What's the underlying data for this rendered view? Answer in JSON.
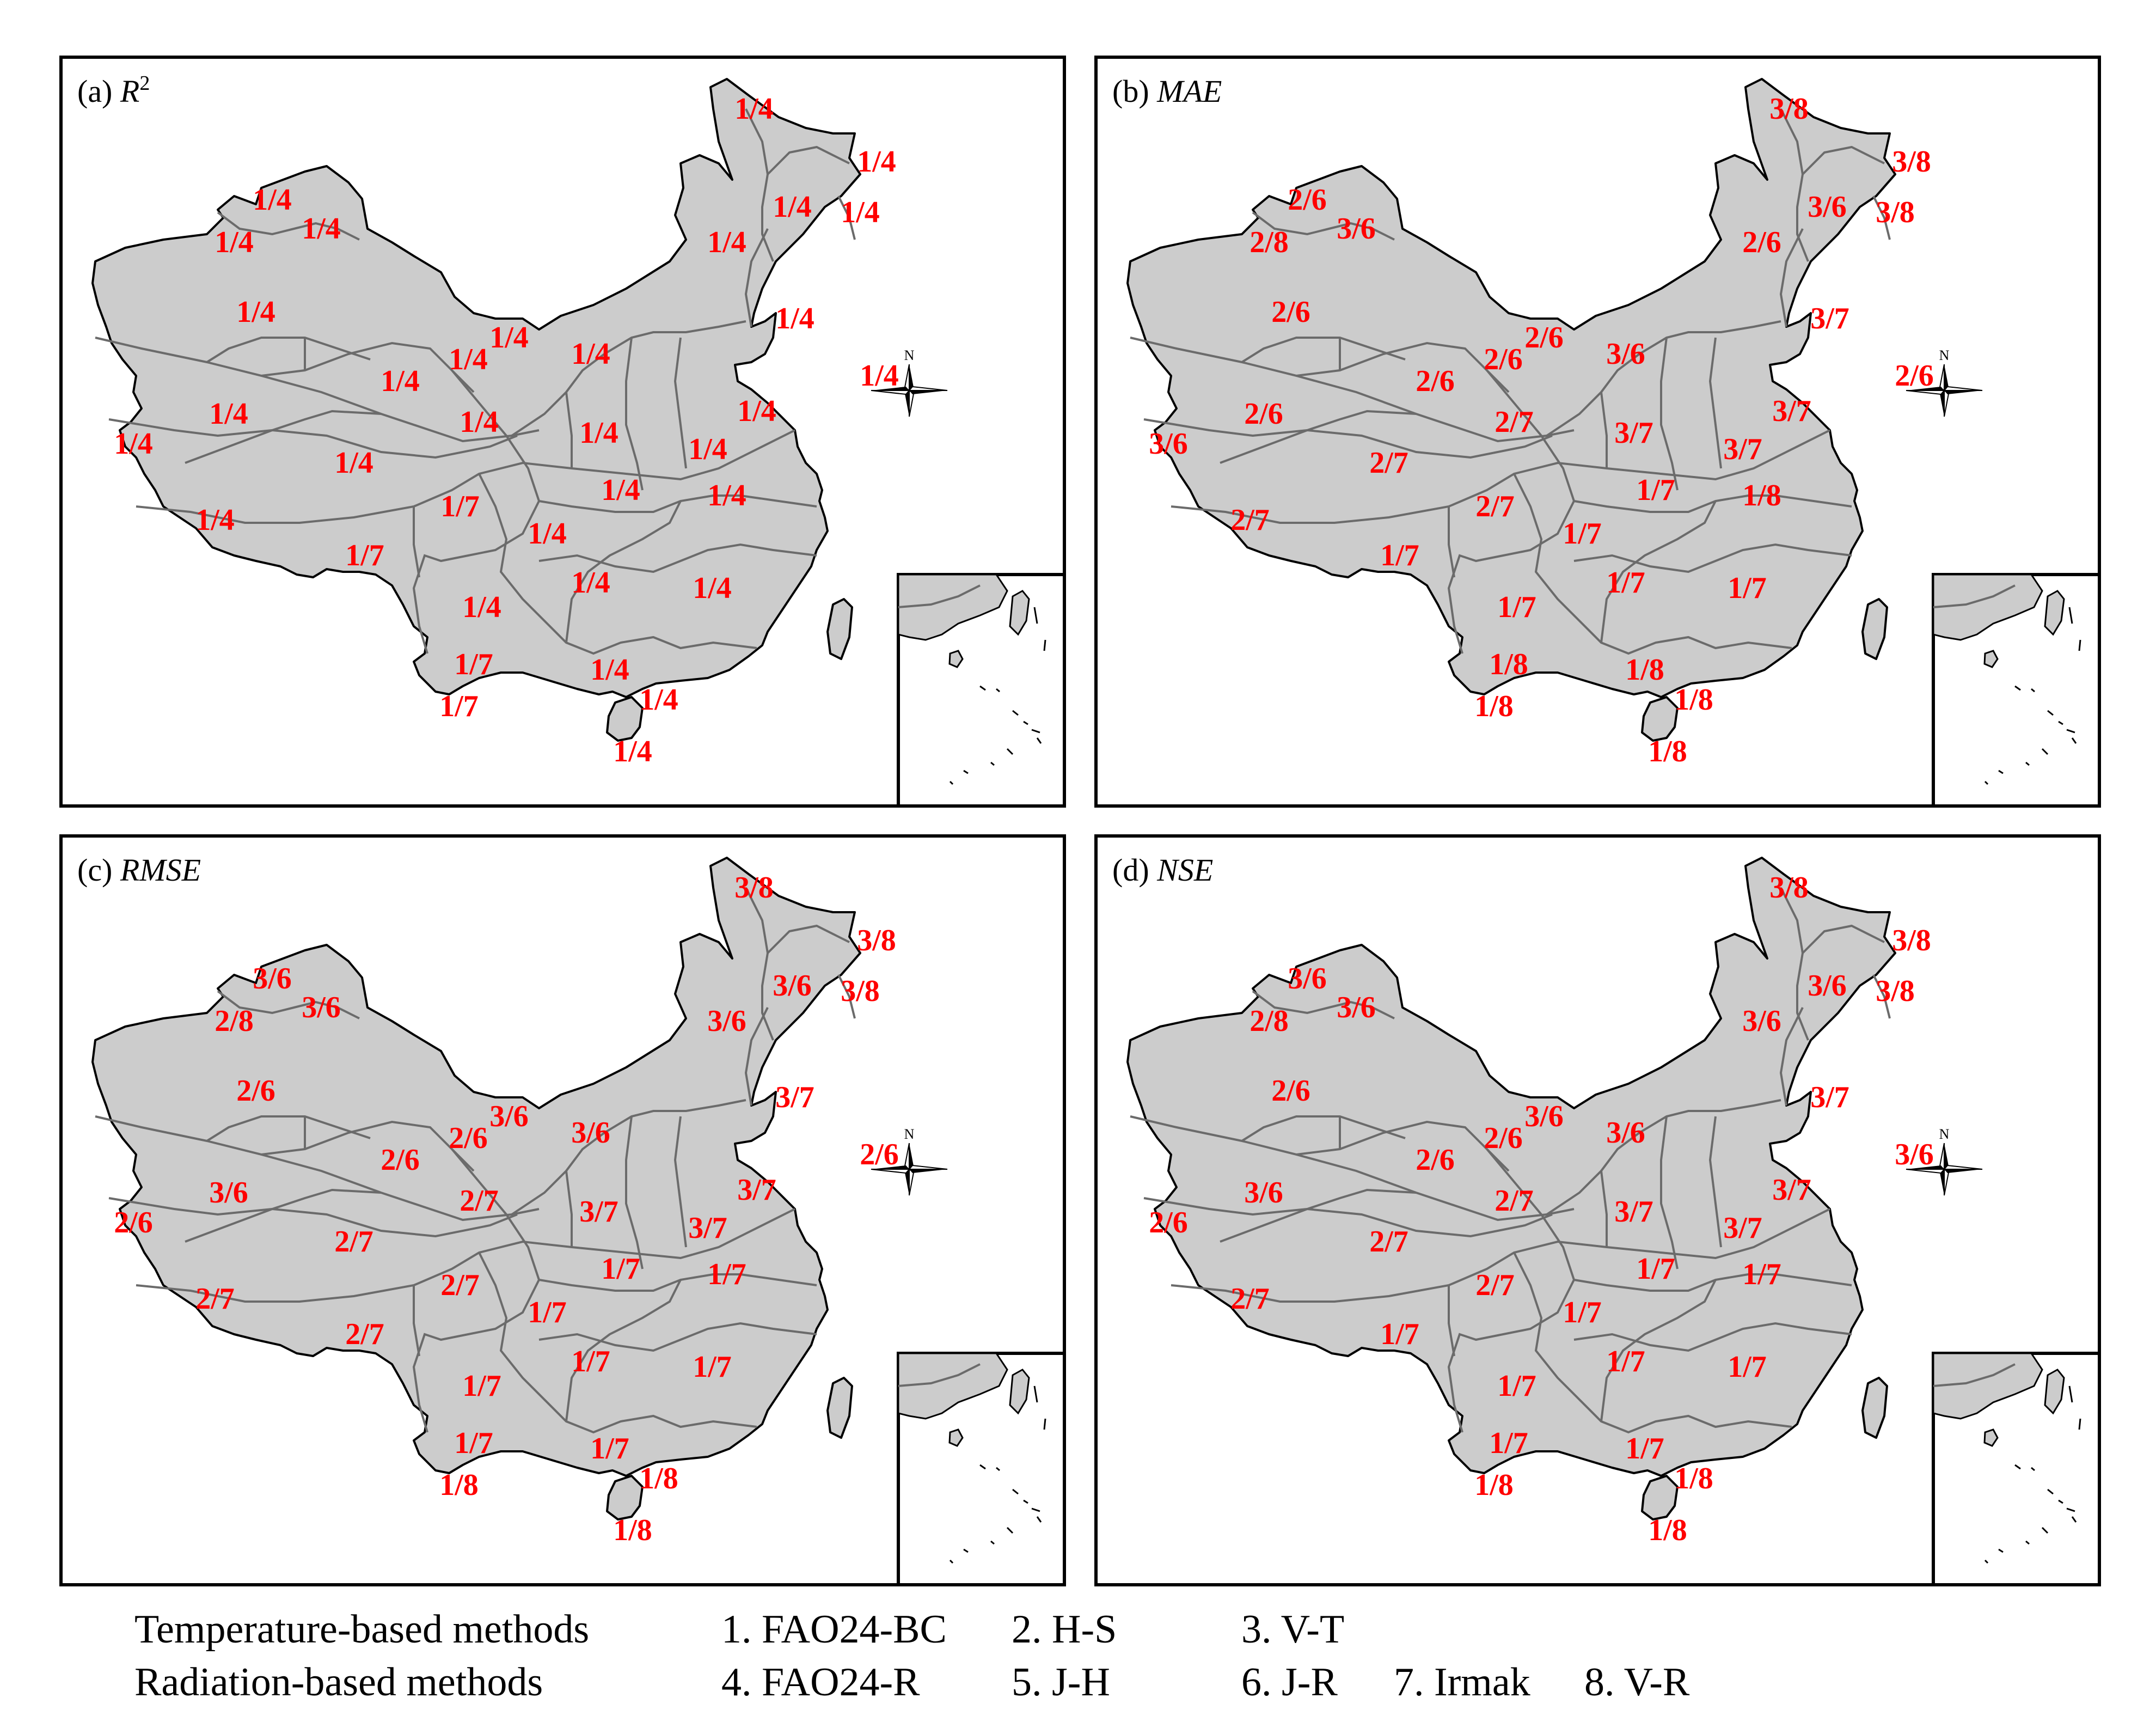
{
  "panels": [
    {
      "title_prefix": "(a) ",
      "metric": "R",
      "superscript": "2",
      "labels": [
        "1/4",
        "1/4",
        "1/4",
        "1/4",
        "1/4",
        "1/4",
        "1/4",
        "1/4",
        "1/4",
        "1/4",
        "1/4",
        "1/4",
        "1/4",
        "1/4",
        "1/4",
        "1/4",
        "1/4",
        "1/4",
        "1/4",
        "1/4",
        "1/4",
        "1/4",
        "1/4",
        "1/4",
        "1/7",
        "1/4",
        "1/4",
        "1/7",
        "1/4",
        "1/4",
        "1/4",
        "1/7",
        "1/4",
        "1/4",
        "1/7",
        "1/4"
      ]
    },
    {
      "title_prefix": "(b) ",
      "metric": "MAE",
      "superscript": "",
      "labels": [
        "3/8",
        "3/8",
        "2/6",
        "3/6",
        "3/6",
        "3/8",
        "2/8",
        "2/6",
        "2/6",
        "3/7",
        "2/6",
        "3/6",
        "2/6",
        "2/6",
        "2/6",
        "3/7",
        "2/6",
        "2/7",
        "3/7",
        "3/7",
        "3/6",
        "2/7",
        "1/7",
        "1/8",
        "2/7",
        "1/7",
        "2/7",
        "1/7",
        "1/7",
        "1/7",
        "1/7",
        "1/8",
        "1/8",
        "1/8",
        "1/8",
        "1/8"
      ]
    },
    {
      "title_prefix": "(c) ",
      "metric": "RMSE",
      "superscript": "",
      "labels": [
        "3/8",
        "3/8",
        "3/6",
        "3/6",
        "3/6",
        "3/8",
        "2/8",
        "3/6",
        "2/6",
        "3/7",
        "3/6",
        "3/6",
        "2/6",
        "2/6",
        "2/6",
        "3/7",
        "3/6",
        "2/7",
        "3/7",
        "3/7",
        "2/6",
        "2/7",
        "1/7",
        "1/7",
        "2/7",
        "1/7",
        "2/7",
        "2/7",
        "1/7",
        "1/7",
        "1/7",
        "1/7",
        "1/7",
        "1/8",
        "1/8",
        "1/8"
      ]
    },
    {
      "title_prefix": "(d) ",
      "metric": "NSE",
      "superscript": "",
      "labels": [
        "3/8",
        "3/8",
        "3/6",
        "3/6",
        "3/6",
        "3/8",
        "2/8",
        "3/6",
        "2/6",
        "3/7",
        "3/6",
        "3/6",
        "2/6",
        "2/6",
        "3/6",
        "3/7",
        "3/6",
        "2/7",
        "3/7",
        "3/7",
        "2/6",
        "2/7",
        "1/7",
        "1/7",
        "2/7",
        "1/7",
        "2/7",
        "1/7",
        "1/7",
        "1/7",
        "1/7",
        "1/7",
        "1/7",
        "1/8",
        "1/8",
        "1/8"
      ]
    }
  ],
  "compass": {
    "north_label": "N"
  },
  "legend": {
    "row1": {
      "group": "Temperature-based methods",
      "items": [
        "1. FAO24-BC",
        "2. H-S",
        "3. V-T"
      ]
    },
    "row2": {
      "group": "Radiation-based methods",
      "items": [
        "4. FAO24-R",
        "5. J-H",
        "6. J-R",
        "7. Irmak",
        "8. V-R"
      ]
    }
  },
  "colors": {
    "land": "#cccccc",
    "label": "#ff0000",
    "boundary": "#6b6b6b"
  }
}
